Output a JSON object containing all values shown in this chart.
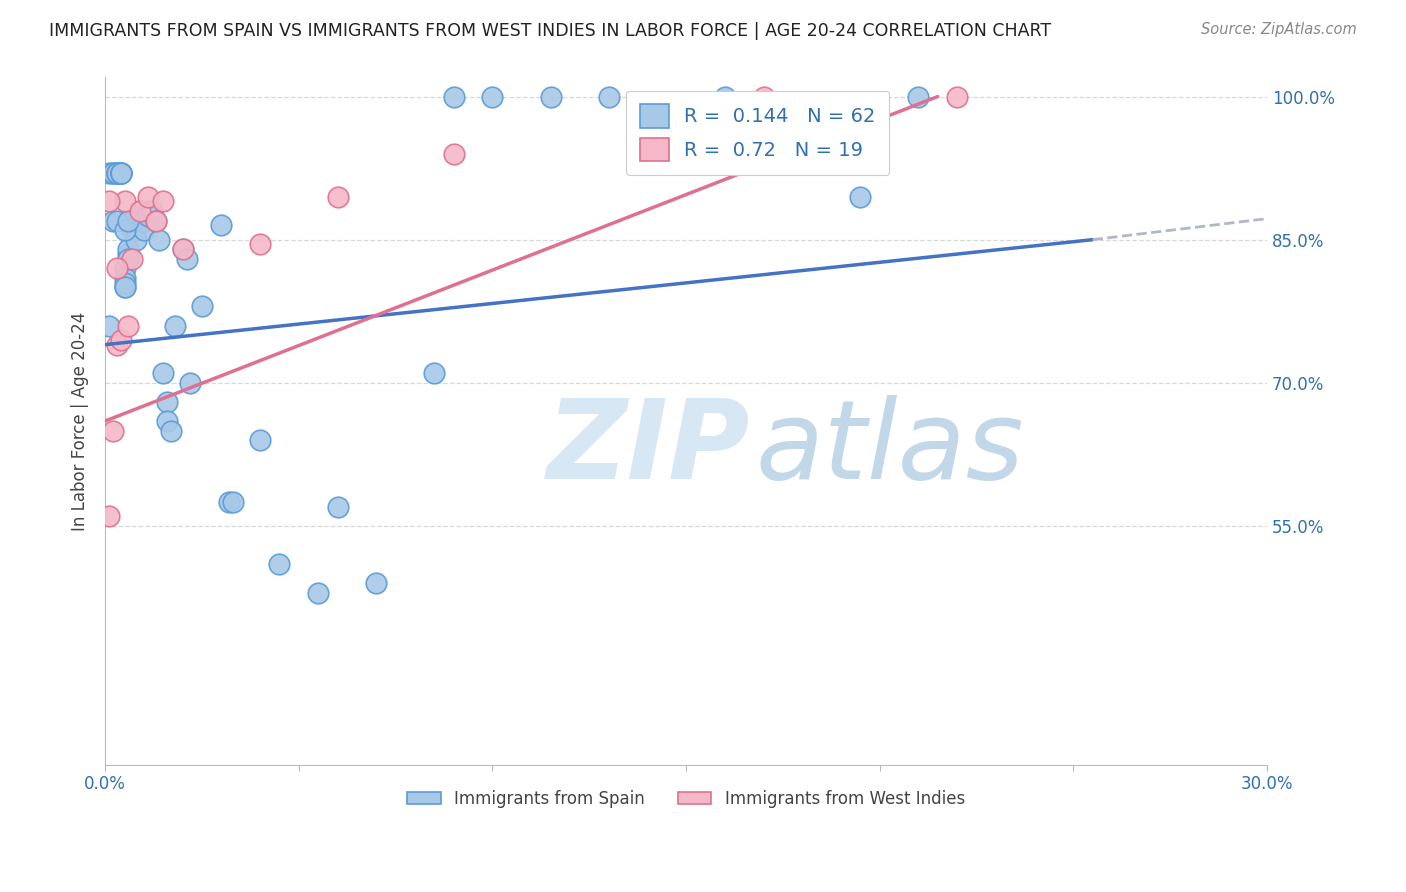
{
  "title": "IMMIGRANTS FROM SPAIN VS IMMIGRANTS FROM WEST INDIES IN LABOR FORCE | AGE 20-24 CORRELATION CHART",
  "source": "Source: ZipAtlas.com",
  "ylabel": "In Labor Force | Age 20-24",
  "xlim": [
    0.0,
    0.3
  ],
  "ylim": [
    0.3,
    1.02
  ],
  "xtick_positions": [
    0.0,
    0.05,
    0.1,
    0.15,
    0.2,
    0.25,
    0.3
  ],
  "xtick_labels": [
    "0.0%",
    "",
    "",
    "",
    "",
    "",
    "30.0%"
  ],
  "ytick_positions": [
    0.55,
    0.7,
    0.85,
    1.0
  ],
  "ytick_labels": [
    "55.0%",
    "70.0%",
    "85.0%",
    "100.0%"
  ],
  "ytick_grid_positions": [
    0.55,
    0.7,
    0.85,
    1.0
  ],
  "spain_color": "#a8c8e8",
  "west_indies_color": "#f5b8c8",
  "spain_edge_color": "#5b9bd5",
  "west_indies_edge_color": "#e07090",
  "spain_R": 0.144,
  "spain_N": 62,
  "west_indies_R": 0.72,
  "west_indies_N": 19,
  "legend_color": "#3070b0",
  "background_color": "#ffffff",
  "grid_color": "#d8d8d8",
  "spain_line_color": "#4472c4",
  "west_indies_line_color": "#e07090",
  "dashed_line_color": "#b0b8c8",
  "spain_points_x": [
    0.001,
    0.002,
    0.002,
    0.003,
    0.003,
    0.003,
    0.004,
    0.004,
    0.004,
    0.004,
    0.005,
    0.005,
    0.005,
    0.005,
    0.005,
    0.006,
    0.006,
    0.006,
    0.007,
    0.007,
    0.008,
    0.008,
    0.009,
    0.009,
    0.01,
    0.01,
    0.011,
    0.011,
    0.012,
    0.013,
    0.014,
    0.015,
    0.016,
    0.016,
    0.017,
    0.018,
    0.02,
    0.021,
    0.022,
    0.025,
    0.03,
    0.032,
    0.033,
    0.04,
    0.045,
    0.055,
    0.06,
    0.07,
    0.085,
    0.09,
    0.1,
    0.115,
    0.13,
    0.16,
    0.185,
    0.195,
    0.21,
    0.001,
    0.002,
    0.003,
    0.005,
    0.006
  ],
  "spain_points_y": [
    0.92,
    0.92,
    0.92,
    0.92,
    0.92,
    0.92,
    0.92,
    0.92,
    0.92,
    0.92,
    0.82,
    0.81,
    0.8,
    0.805,
    0.8,
    0.835,
    0.84,
    0.83,
    0.87,
    0.86,
    0.86,
    0.85,
    0.88,
    0.87,
    0.87,
    0.86,
    0.88,
    0.875,
    0.88,
    0.87,
    0.85,
    0.71,
    0.68,
    0.66,
    0.65,
    0.76,
    0.84,
    0.83,
    0.7,
    0.78,
    0.865,
    0.575,
    0.575,
    0.64,
    0.51,
    0.48,
    0.57,
    0.49,
    0.71,
    1.0,
    1.0,
    1.0,
    1.0,
    1.0,
    0.955,
    0.895,
    1.0,
    0.76,
    0.87,
    0.87,
    0.86,
    0.87
  ],
  "west_indies_points_x": [
    0.001,
    0.002,
    0.003,
    0.004,
    0.005,
    0.006,
    0.007,
    0.009,
    0.011,
    0.013,
    0.015,
    0.02,
    0.04,
    0.06,
    0.09,
    0.17,
    0.22,
    0.001,
    0.003
  ],
  "west_indies_points_y": [
    0.56,
    0.65,
    0.74,
    0.745,
    0.89,
    0.76,
    0.83,
    0.88,
    0.895,
    0.87,
    0.89,
    0.84,
    0.845,
    0.895,
    0.94,
    1.0,
    1.0,
    0.89,
    0.82
  ],
  "spain_line_x0": 0.0,
  "spain_line_x1": 0.255,
  "spain_line_y0": 0.74,
  "spain_line_y1": 0.85,
  "dashed_line_x0": 0.255,
  "dashed_line_x1": 0.3,
  "dashed_line_y0": 0.85,
  "dashed_line_y1": 0.872,
  "wi_line_x0": 0.0,
  "wi_line_x1": 0.215,
  "wi_line_y0": 0.66,
  "wi_line_y1": 1.0
}
